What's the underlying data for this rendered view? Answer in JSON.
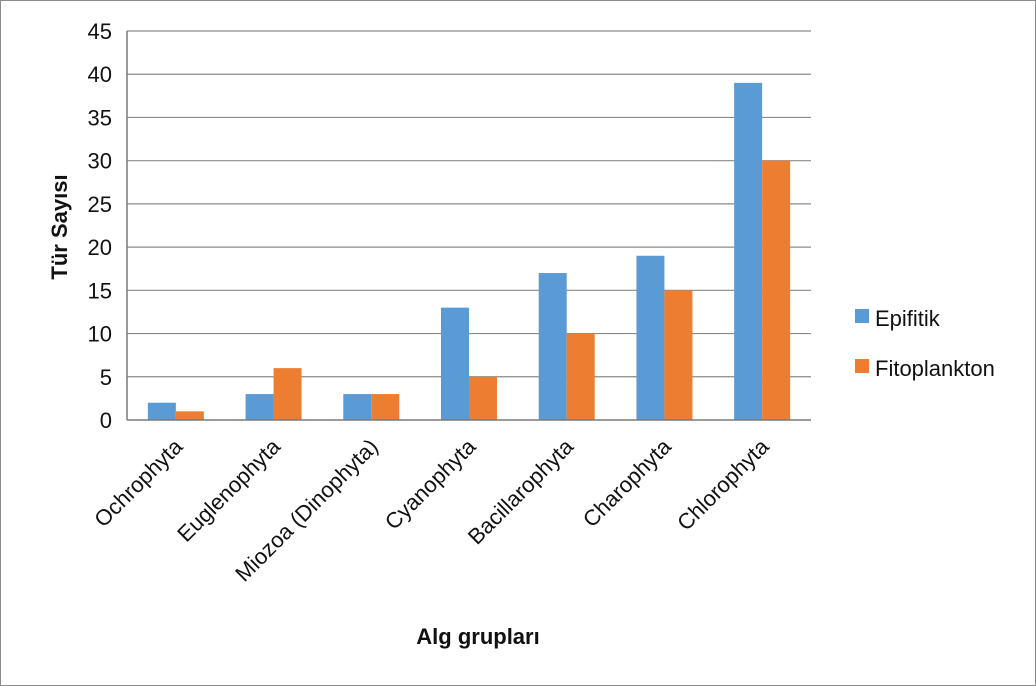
{
  "chart_data": {
    "type": "bar",
    "title": "",
    "xlabel": "Alg grupları",
    "ylabel": "Tür Sayısı",
    "ylim": [
      0,
      45
    ],
    "yticks": [
      0,
      5,
      10,
      15,
      20,
      25,
      30,
      35,
      40,
      45
    ],
    "grid": true,
    "legend_position": "right",
    "categories": [
      "Ochrophyta",
      "Euglenophyta",
      "Miozoa (Dinophyta)",
      "Cyanophyta",
      "Bacillarophyta",
      "Charophyta",
      "Chlorophyta"
    ],
    "series": [
      {
        "name": "Epifitik",
        "color": "#5b9bd5",
        "values": [
          2,
          3,
          3,
          13,
          17,
          19,
          39
        ]
      },
      {
        "name": "Fitoplankton",
        "color": "#ed7d31",
        "values": [
          1,
          6,
          3,
          5,
          10,
          15,
          30
        ]
      }
    ]
  }
}
